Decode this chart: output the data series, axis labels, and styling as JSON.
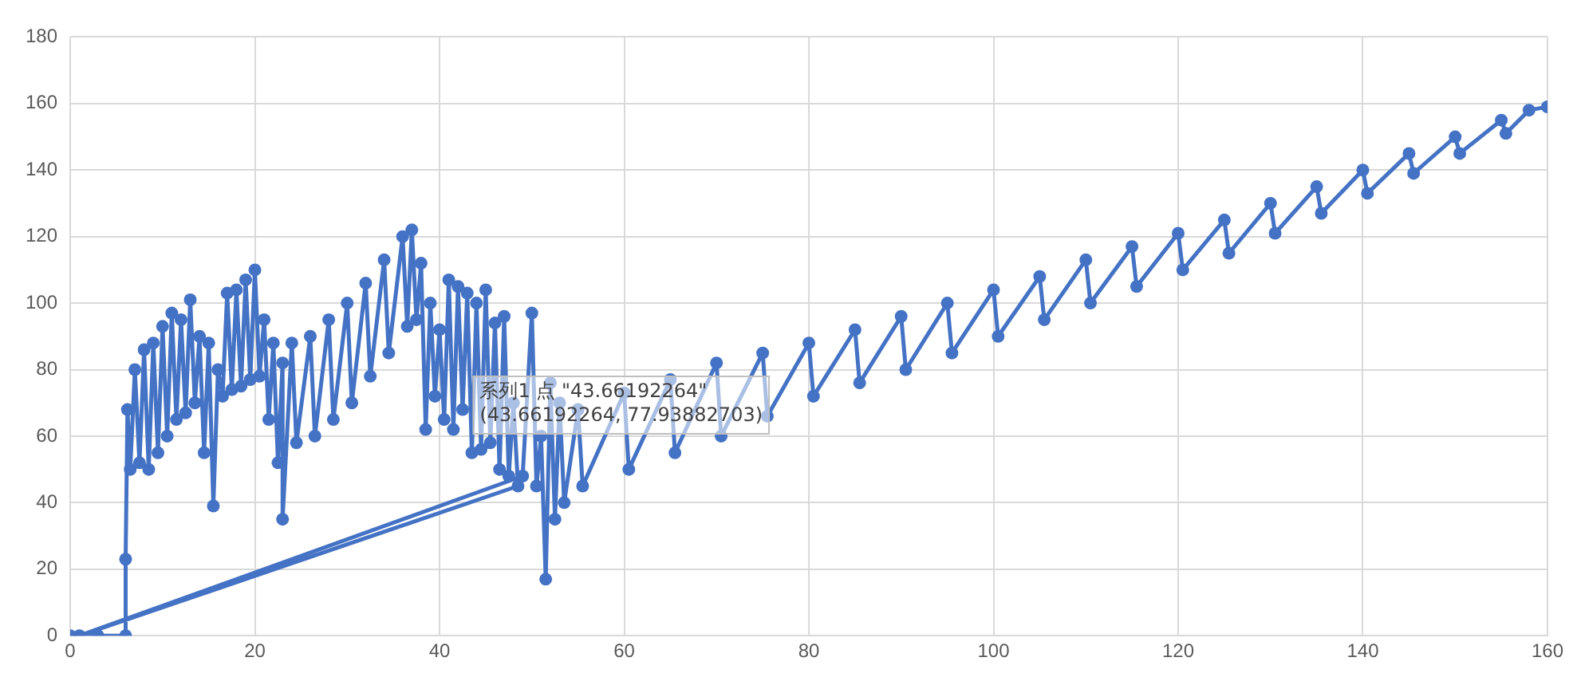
{
  "chart_data": {
    "type": "line",
    "color": "#4472c4",
    "marker": "circle",
    "line_style": "solid",
    "grid": true,
    "x": [
      0,
      3,
      6,
      6,
      6.2,
      6.5,
      7,
      7.5,
      8,
      8.5,
      9,
      9.5,
      10,
      10.5,
      11,
      11.5,
      12,
      12.5,
      13,
      13.5,
      14,
      14.5,
      15,
      15.5,
      16,
      16.5,
      17,
      17.5,
      18,
      18.5,
      19,
      19.5,
      20,
      20.5,
      21,
      21.5,
      22,
      22.5,
      23,
      23,
      24,
      24.5,
      26,
      26.5,
      28,
      28.5,
      30,
      30.5,
      32,
      32.5,
      34,
      34.5,
      36,
      36.5,
      37,
      37.5,
      38,
      38.5,
      39,
      39.5,
      40,
      40.5,
      41,
      41.5,
      42,
      42.5,
      43,
      43.5,
      44,
      44.5,
      45,
      45.5,
      46,
      46.5,
      47,
      47.5,
      48,
      48.5,
      1,
      49,
      50,
      50.5,
      51,
      51.5,
      52,
      52.5,
      53,
      53.5,
      55,
      55.5,
      60,
      60.5,
      65,
      65.5,
      70,
      70.5,
      75,
      75.5,
      80,
      80.5,
      85,
      85.5,
      90,
      90.5,
      95,
      95.5,
      100,
      100.5,
      105,
      105.5,
      110,
      110.5,
      115,
      115.5,
      120,
      120.5,
      125,
      125.5,
      130,
      130.5,
      135,
      135.5,
      140,
      140.5,
      145,
      145.5,
      150,
      150.5,
      155,
      155.5,
      158,
      160
    ],
    "values": [
      0,
      0,
      0,
      23,
      68,
      50,
      80,
      52,
      86,
      50,
      88,
      55,
      93,
      60,
      97,
      65,
      95,
      67,
      101,
      70,
      90,
      55,
      88,
      39,
      80,
      72,
      103,
      74,
      104,
      75,
      107,
      77,
      110,
      78,
      95,
      65,
      88,
      52,
      82,
      35,
      88,
      58,
      90,
      60,
      95,
      65,
      100,
      70,
      106,
      78,
      113,
      85,
      120,
      93,
      122,
      95,
      112,
      62,
      100,
      72,
      92,
      65,
      107,
      62,
      105,
      68,
      103,
      55,
      100,
      56,
      104,
      58,
      94,
      50,
      96,
      48,
      70,
      45,
      0,
      48,
      97,
      45,
      60,
      17,
      76,
      35,
      70,
      40,
      68,
      45,
      73,
      50,
      77,
      55,
      82,
      60,
      85,
      66,
      88,
      72,
      92,
      76,
      96,
      80,
      100,
      85,
      104,
      90,
      108,
      95,
      113,
      100,
      117,
      105,
      121,
      110,
      125,
      115,
      130,
      121,
      135,
      127,
      140,
      133,
      145,
      139,
      150,
      145,
      155,
      151,
      158,
      159
    ],
    "xlim": [
      0,
      160
    ],
    "xticks": [
      0,
      20,
      40,
      60,
      80,
      100,
      120,
      140,
      160
    ],
    "ylim": [
      0,
      180
    ],
    "yticks": [
      0,
      20,
      40,
      60,
      80,
      100,
      120,
      140,
      160,
      180
    ],
    "annotations": [
      {
        "text": "系列1 点 \"43.66192264\"\n(43.66192264, 77.93882703)",
        "x": 43.66192264,
        "y": 77.93882703
      }
    ]
  }
}
